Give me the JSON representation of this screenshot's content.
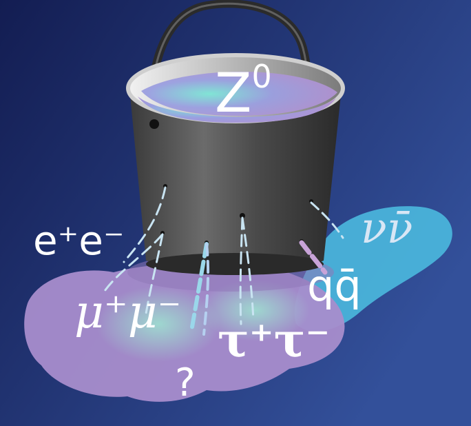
{
  "labels": {
    "z_boson": "Z",
    "z_boson_sup": "0",
    "electron_pair": "e⁺e⁻",
    "muon_pair": "μ⁺μ⁻",
    "tau_pair": "τ⁺τ⁻",
    "quark_pair": "qq̄",
    "neutrino_pair": "νν̄",
    "unknown": "?"
  },
  "colors": {
    "background_dark": "#152159",
    "background_light": "#2f4a94",
    "bucket": "#5a5a5a",
    "bucket_rim": "#bdbdbd",
    "water": "#b48fd0",
    "puddle_purple": "#a98ccc",
    "puddle_cyan": "#4cb7dc",
    "drip": "#b9d8ee"
  }
}
